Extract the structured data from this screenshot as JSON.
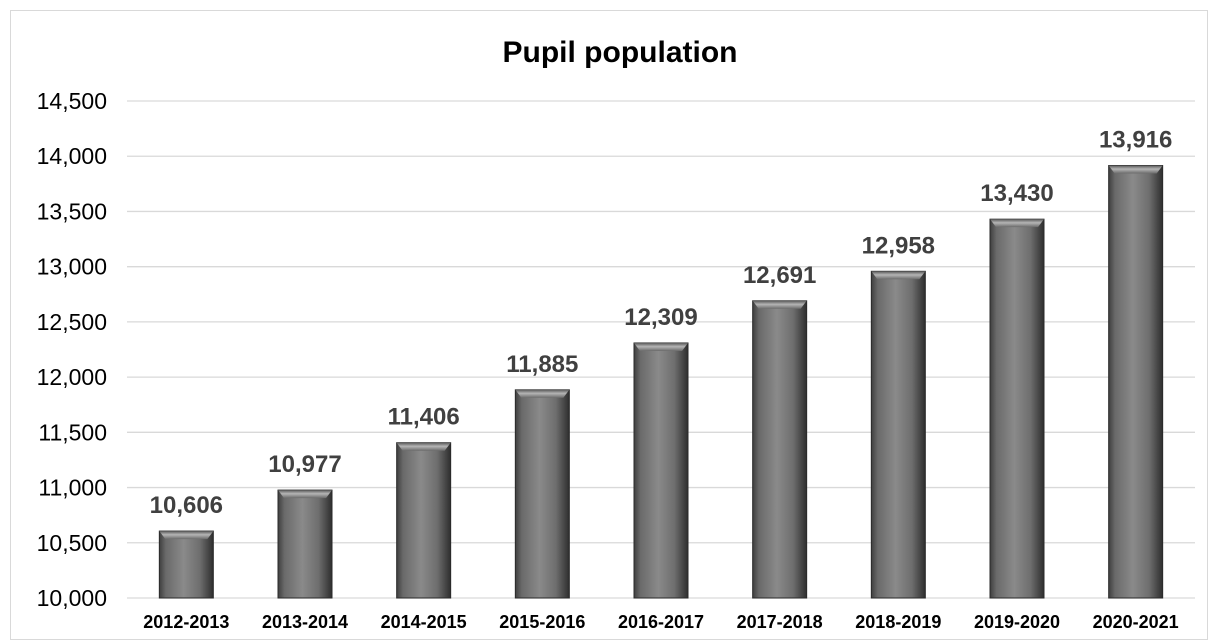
{
  "chart_data": {
    "type": "bar",
    "title": "Pupil population",
    "xlabel": "",
    "ylabel": "",
    "categories": [
      "2012-2013",
      "2013-2014",
      "2014-2015",
      "2015-2016",
      "2016-2017",
      "2017-2018",
      "2018-2019",
      "2019-2020",
      "2020-2021"
    ],
    "values": [
      10606,
      10977,
      11406,
      11885,
      12309,
      12691,
      12958,
      13430,
      13916
    ],
    "data_labels": [
      "10,606",
      "10,977",
      "11,406",
      "11,885",
      "12,309",
      "12,691",
      "12,958",
      "13,430",
      "13,916"
    ],
    "y_tick_values": [
      10000,
      10500,
      11000,
      11500,
      12000,
      12500,
      13000,
      13500,
      14000,
      14500
    ],
    "y_tick_labels": [
      "10,000",
      "10,500",
      "11,000",
      "11,500",
      "12,000",
      "12,500",
      "13,000",
      "13,500",
      "14,000",
      "14,500"
    ],
    "ylim": [
      10000,
      14500
    ],
    "grid": true,
    "legend": "none",
    "colors": {
      "bar": "#7f7f7f",
      "bar_dark": "#3a3a3a",
      "bar_light": "#a6a6a6",
      "gridline": "#d9d9d9",
      "data_label": "#404040"
    }
  }
}
